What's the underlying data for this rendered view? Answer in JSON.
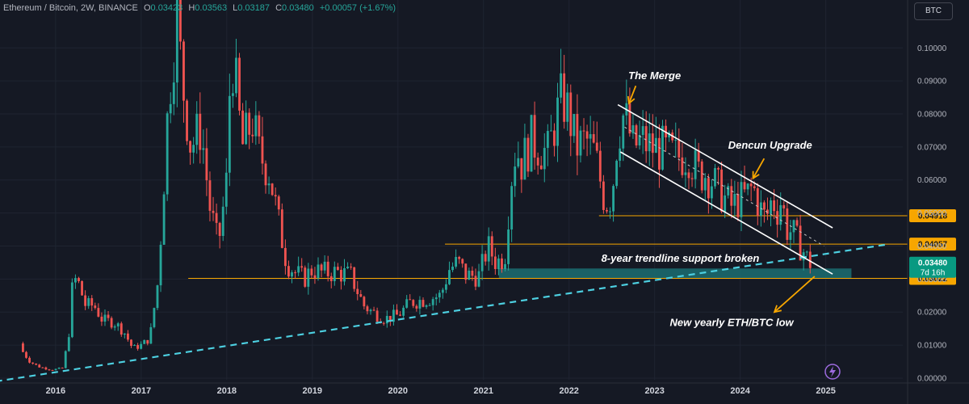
{
  "header": {
    "symbol": "Ethereum / Bitcoin, 2W, BINANCE",
    "open_label": "O",
    "open": "0.03423",
    "high_label": "H",
    "high": "0.03563",
    "low_label": "L",
    "low": "0.03187",
    "close_label": "C",
    "close": "0.03480",
    "change": "+0.00057 (+1.67%)"
  },
  "currency_button": "BTC",
  "colors": {
    "up": "#26a69a",
    "down": "#ef5350",
    "level": "#f7a600",
    "trend": "#4dd0e1",
    "zone": "#1b6e72",
    "channel": "#ffffff",
    "bg": "#151924"
  },
  "chart_data": {
    "type": "candlestick",
    "instrument": "Ethereum / Bitcoin, 2W, BINANCE",
    "x_axis": {
      "ticks": [
        "2016",
        "2017",
        "2018",
        "2019",
        "2020",
        "2021",
        "2022",
        "2023",
        "2024",
        "2025"
      ],
      "range": [
        2015.35,
        2025.9
      ]
    },
    "y_axis": {
      "ticks": [
        "0.10000",
        "0.09000",
        "0.08000",
        "0.07000",
        "0.06000",
        "0.05000",
        "0.04000",
        "0.03000",
        "0.02000",
        "0.01000",
        "0.00000"
      ],
      "range": [
        -0.0005,
        0.1145
      ]
    },
    "price_path": [
      [
        2015.58,
        0.0105
      ],
      [
        2015.62,
        0.0078
      ],
      [
        2015.7,
        0.005
      ],
      [
        2015.8,
        0.0035
      ],
      [
        2015.95,
        0.0025
      ],
      [
        2016.08,
        0.003
      ],
      [
        2016.15,
        0.012
      ],
      [
        2016.2,
        0.029
      ],
      [
        2016.25,
        0.03
      ],
      [
        2016.35,
        0.022
      ],
      [
        2016.45,
        0.022
      ],
      [
        2016.55,
        0.0175
      ],
      [
        2016.68,
        0.017
      ],
      [
        2016.8,
        0.014
      ],
      [
        2016.9,
        0.009
      ],
      [
        2017.0,
        0.01
      ],
      [
        2017.1,
        0.012
      ],
      [
        2017.2,
        0.03
      ],
      [
        2017.32,
        0.085
      ],
      [
        2017.42,
        0.11
      ],
      [
        2017.48,
        0.09
      ],
      [
        2017.58,
        0.07
      ],
      [
        2017.7,
        0.076
      ],
      [
        2017.8,
        0.052
      ],
      [
        2017.9,
        0.04
      ],
      [
        2018.0,
        0.06
      ],
      [
        2018.05,
        0.1
      ],
      [
        2018.1,
        0.09
      ],
      [
        2018.18,
        0.07
      ],
      [
        2018.3,
        0.078
      ],
      [
        2018.38,
        0.068
      ],
      [
        2018.5,
        0.062
      ],
      [
        2018.6,
        0.048
      ],
      [
        2018.7,
        0.035
      ],
      [
        2018.8,
        0.032
      ],
      [
        2018.9,
        0.03
      ],
      [
        2019.0,
        0.033
      ],
      [
        2019.1,
        0.032
      ],
      [
        2019.3,
        0.032
      ],
      [
        2019.45,
        0.031
      ],
      [
        2019.6,
        0.022
      ],
      [
        2019.7,
        0.02
      ],
      [
        2019.85,
        0.018
      ],
      [
        2020.0,
        0.019
      ],
      [
        2020.15,
        0.023
      ],
      [
        2020.35,
        0.024
      ],
      [
        2020.5,
        0.025
      ],
      [
        2020.6,
        0.033
      ],
      [
        2020.7,
        0.035
      ],
      [
        2020.8,
        0.031
      ],
      [
        2020.95,
        0.031
      ],
      [
        2021.05,
        0.04
      ],
      [
        2021.15,
        0.035
      ],
      [
        2021.25,
        0.037
      ],
      [
        2021.32,
        0.06
      ],
      [
        2021.38,
        0.07
      ],
      [
        2021.45,
        0.065
      ],
      [
        2021.55,
        0.072
      ],
      [
        2021.65,
        0.07
      ],
      [
        2021.75,
        0.068
      ],
      [
        2021.85,
        0.079
      ],
      [
        2021.92,
        0.085
      ],
      [
        2022.0,
        0.08
      ],
      [
        2022.08,
        0.07
      ],
      [
        2022.2,
        0.072
      ],
      [
        2022.3,
        0.068
      ],
      [
        2022.42,
        0.053
      ],
      [
        2022.5,
        0.055
      ],
      [
        2022.55,
        0.07
      ],
      [
        2022.62,
        0.08
      ],
      [
        2022.68,
        0.077
      ],
      [
        2022.75,
        0.07
      ],
      [
        2022.85,
        0.072
      ],
      [
        2022.95,
        0.07
      ],
      [
        2023.1,
        0.069
      ],
      [
        2023.25,
        0.067
      ],
      [
        2023.4,
        0.068
      ],
      [
        2023.5,
        0.062
      ],
      [
        2023.6,
        0.062
      ],
      [
        2023.7,
        0.059
      ],
      [
        2023.8,
        0.055
      ],
      [
        2023.9,
        0.052
      ],
      [
        2024.0,
        0.054
      ],
      [
        2024.1,
        0.056
      ],
      [
        2024.15,
        0.058
      ],
      [
        2024.22,
        0.052
      ],
      [
        2024.3,
        0.048
      ],
      [
        2024.38,
        0.055
      ],
      [
        2024.42,
        0.05
      ],
      [
        2024.48,
        0.054
      ],
      [
        2024.55,
        0.045
      ],
      [
        2024.62,
        0.044
      ],
      [
        2024.7,
        0.04
      ],
      [
        2024.75,
        0.038
      ],
      [
        2024.8,
        0.035
      ],
      [
        2024.85,
        0.0348
      ]
    ],
    "horizontal_levels": [
      {
        "value": 0.04918,
        "label": "0.04918",
        "from_x": 2022.35
      },
      {
        "value": 0.04057,
        "label": "0.04057",
        "from_x": 2020.55
      },
      {
        "value": 0.03022,
        "label": "0.03022",
        "from_x": 2017.55
      }
    ],
    "last_price": {
      "value": 0.0348,
      "label": "0.03480",
      "countdown": "7d 16h"
    },
    "trendline": {
      "from": [
        2015.3,
        -0.001
      ],
      "to": [
        2025.7,
        0.0404
      ],
      "style": "dashed"
    },
    "support_zone": {
      "x_from": 2021.18,
      "x_to": 2025.3,
      "y_from": 0.0302,
      "y_to": 0.0332
    },
    "channel": {
      "upper": {
        "from": [
          2022.57,
          0.0828
        ],
        "to": [
          2025.08,
          0.0455
        ]
      },
      "lower": {
        "from": [
          2022.6,
          0.0685
        ],
        "to": [
          2025.08,
          0.0315
        ]
      },
      "midline": {
        "from": [
          2022.65,
          0.076
        ],
        "to": [
          2024.98,
          0.04
        ]
      }
    },
    "annotations": [
      {
        "text": "The Merge",
        "x": 2023.0,
        "y": 0.0905,
        "arrow_from": [
          2022.78,
          0.0885
        ],
        "arrow_to": [
          2022.7,
          0.0832
        ]
      },
      {
        "text": "Dencun Upgrade",
        "x": 2024.35,
        "y": 0.0695,
        "arrow_from": [
          2024.28,
          0.0665
        ],
        "arrow_to": [
          2024.15,
          0.0605
        ]
      },
      {
        "text": "8-year trendline support broken",
        "x": 2023.3,
        "y": 0.0352,
        "arrow_from": null,
        "arrow_to": null
      },
      {
        "text": "New yearly ETH/BTC low",
        "x": 2023.9,
        "y": 0.0158,
        "arrow_from": [
          2024.87,
          0.0308
        ],
        "arrow_to": [
          2024.4,
          0.02
        ]
      }
    ]
  }
}
